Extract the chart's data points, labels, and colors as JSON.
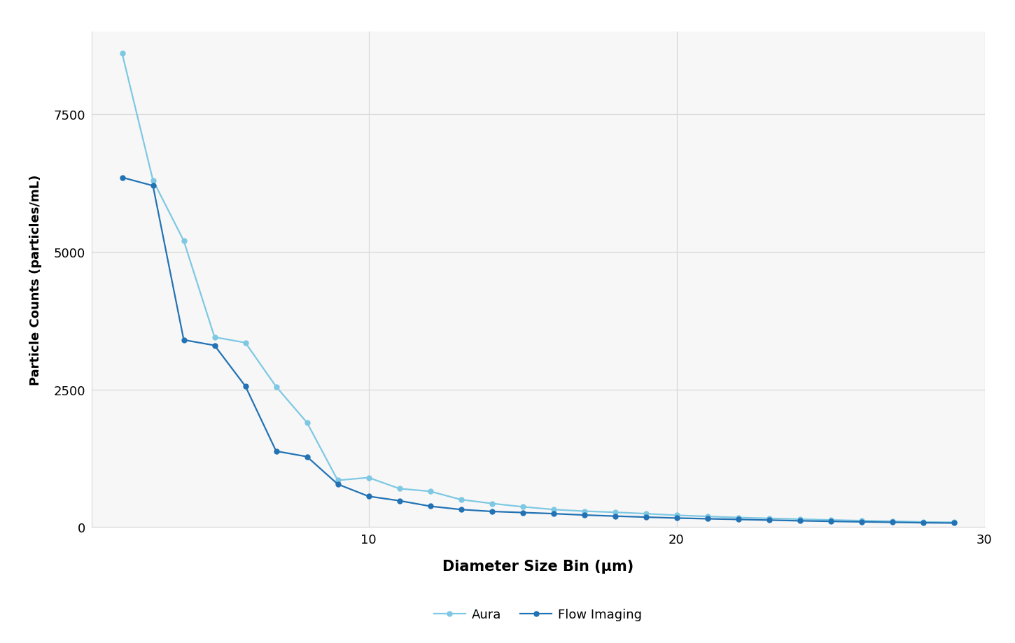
{
  "aura_x": [
    2,
    3,
    4,
    5,
    6,
    7,
    8,
    9,
    10,
    11,
    12,
    13,
    14,
    15,
    16,
    17,
    18,
    19,
    20,
    21,
    22,
    23,
    24,
    25,
    26,
    27,
    28,
    29
  ],
  "aura_y": [
    8600,
    6300,
    5200,
    3450,
    3350,
    2550,
    1900,
    850,
    900,
    700,
    650,
    500,
    430,
    370,
    320,
    290,
    270,
    245,
    215,
    195,
    175,
    160,
    145,
    130,
    118,
    108,
    95,
    88
  ],
  "flow_x": [
    2,
    3,
    4,
    5,
    6,
    7,
    8,
    9,
    10,
    11,
    12,
    13,
    14,
    15,
    16,
    17,
    18,
    19,
    20,
    21,
    22,
    23,
    24,
    25,
    26,
    27,
    28,
    29
  ],
  "flow_y": [
    6350,
    6200,
    3400,
    3300,
    2560,
    1380,
    1280,
    780,
    560,
    480,
    380,
    320,
    285,
    265,
    245,
    220,
    200,
    182,
    165,
    152,
    140,
    128,
    115,
    105,
    96,
    88,
    80,
    75
  ],
  "aura_color": "#7ec8e3",
  "flow_color": "#2272b4",
  "xlabel": "Diameter Size Bin (μm)",
  "ylabel": "Particle Counts (particles/mL)",
  "ylim": [
    0,
    9000
  ],
  "xlim": [
    1,
    30
  ],
  "yticks": [
    0,
    2500,
    5000,
    7500
  ],
  "xticks": [
    10,
    20,
    30
  ],
  "grid_color": "#d9d9d9",
  "bg_color": "#ffffff",
  "plot_bg_color": "#f7f7f7",
  "legend_aura": "Aura",
  "legend_flow": "Flow Imaging",
  "marker_size": 5,
  "line_width": 1.6,
  "xlabel_fontsize": 15,
  "ylabel_fontsize": 13,
  "tick_fontsize": 13,
  "legend_fontsize": 13
}
